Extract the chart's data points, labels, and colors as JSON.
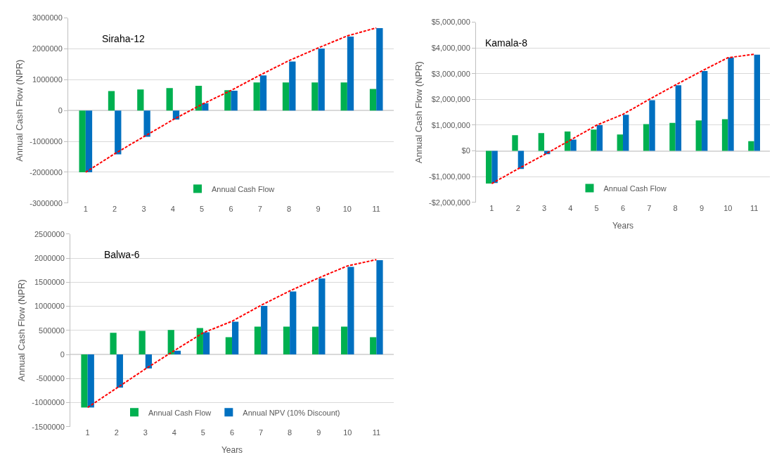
{
  "chart_data": [
    {
      "type": "bar",
      "title": "Siraha-12",
      "ylabel": "Annual Cash Flow (NPR)",
      "categories": [
        "1",
        "2",
        "3",
        "4",
        "5",
        "6",
        "7",
        "8",
        "9",
        "10",
        "11"
      ],
      "series": [
        {
          "name": "Annual Cash Flow",
          "color": "#00b050",
          "values": [
            -2000000,
            630000,
            680000,
            730000,
            800000,
            660000,
            910000,
            910000,
            910000,
            910000,
            700000
          ]
        },
        {
          "color": "#0070c0",
          "values": [
            -2000000,
            -1420000,
            -850000,
            -290000,
            240000,
            640000,
            1140000,
            1590000,
            2010000,
            2400000,
            2670000
          ]
        },
        {
          "type": "line",
          "color": "#ff0000",
          "line_style": "dashed",
          "values": [
            -2000000,
            -1400000,
            -850000,
            -300000,
            200000,
            650000,
            1150000,
            1620000,
            2030000,
            2420000,
            2680000
          ]
        }
      ],
      "ylim": [
        -3000000,
        3000000
      ],
      "yticks": [
        -3000000,
        -2000000,
        -1000000,
        0,
        1000000,
        2000000,
        3000000
      ],
      "grid": "y",
      "legend": "bottom"
    },
    {
      "type": "bar",
      "title": "Kamala-8",
      "xlabel": "Years",
      "ylabel": "Annual Cash Flow (NPR)",
      "categories": [
        "1",
        "2",
        "3",
        "4",
        "5",
        "6",
        "7",
        "8",
        "9",
        "10",
        "11"
      ],
      "series": [
        {
          "name": "Annual Cash Flow",
          "color": "#00b050",
          "values": [
            -1270000,
            610000,
            690000,
            750000,
            830000,
            640000,
            1040000,
            1090000,
            1180000,
            1230000,
            380000
          ]
        },
        {
          "color": "#0070c0",
          "values": [
            -1250000,
            -700000,
            -130000,
            440000,
            1000000,
            1400000,
            1970000,
            2550000,
            3100000,
            3630000,
            3740000
          ]
        },
        {
          "type": "line",
          "color": "#ff0000",
          "line_style": "dashed",
          "values": [
            -1270000,
            -700000,
            -150000,
            420000,
            1000000,
            1420000,
            2000000,
            2560000,
            3100000,
            3620000,
            3750000
          ]
        }
      ],
      "ylim": [
        -2000000,
        5000000
      ],
      "yticks": [
        {
          "value": -2000000,
          "label": "-$2,000,000"
        },
        {
          "value": -1000000,
          "label": "-$1,000,000"
        },
        {
          "value": 0,
          "label": "$0"
        },
        {
          "value": 1000000,
          "label": "$1,000,000"
        },
        {
          "value": 2000000,
          "label": "$2,000,000"
        },
        {
          "value": 3000000,
          "label": "$3,000,000"
        },
        {
          "value": 4000000,
          "label": "$4,000,000"
        },
        {
          "value": 5000000,
          "label": "$5,000,000"
        }
      ],
      "grid": "y",
      "legend": "bottom"
    },
    {
      "type": "bar",
      "title": "Balwa-6",
      "xlabel": "Years",
      "ylabel": "Annual Cash Flow (NPR)",
      "categories": [
        "1",
        "2",
        "3",
        "4",
        "5",
        "6",
        "7",
        "8",
        "9",
        "10",
        "11"
      ],
      "series": [
        {
          "name": "Annual Cash Flow",
          "color": "#00b050",
          "values": [
            -1100000,
            450000,
            490000,
            510000,
            550000,
            360000,
            580000,
            580000,
            580000,
            580000,
            360000
          ]
        },
        {
          "name": "Annual NPV (10% Discount)",
          "color": "#0070c0",
          "values": [
            -1100000,
            -690000,
            -290000,
            80000,
            460000,
            680000,
            1010000,
            1310000,
            1580000,
            1820000,
            1960000
          ]
        },
        {
          "type": "line",
          "color": "#ff0000",
          "line_style": "dashed",
          "values": [
            -1100000,
            -700000,
            -300000,
            80000,
            450000,
            690000,
            1020000,
            1320000,
            1590000,
            1840000,
            1970000
          ]
        }
      ],
      "ylim": [
        -1500000,
        2500000
      ],
      "yticks": [
        -1500000,
        -1000000,
        -500000,
        0,
        500000,
        1000000,
        1500000,
        2000000,
        2500000
      ],
      "grid": "y",
      "legend": "bottom"
    }
  ]
}
